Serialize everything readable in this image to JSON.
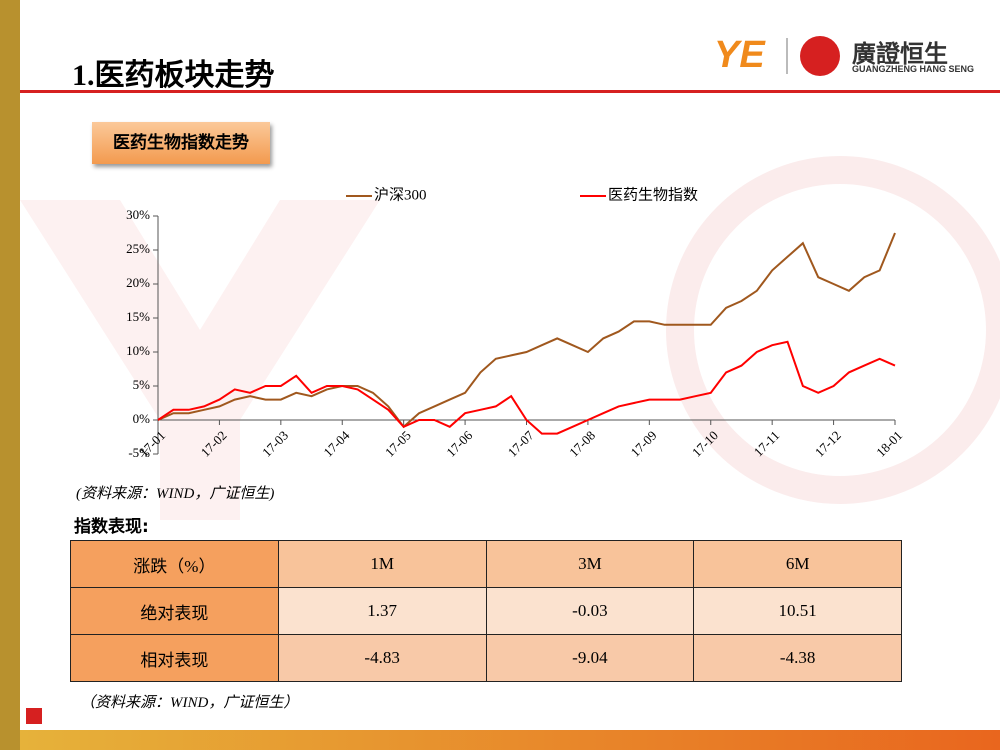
{
  "header": {
    "title": "1.医药板块走势",
    "logo_name": "廣證恒生",
    "logo_sub": "GUANGZHENG HANG SENG",
    "logo_mark": "YE"
  },
  "section_label": "医药生物指数走势",
  "chart_data": {
    "type": "line",
    "categories": [
      "17-01",
      null,
      null,
      null,
      "17-02",
      null,
      null,
      null,
      "17-03",
      null,
      null,
      null,
      "17-04",
      null,
      null,
      null,
      "17-05",
      null,
      null,
      null,
      "17-06",
      null,
      null,
      null,
      "17-07",
      null,
      null,
      null,
      "17-08",
      null,
      null,
      null,
      "17-09",
      null,
      null,
      null,
      "17-10",
      null,
      null,
      null,
      "17-11",
      null,
      null,
      null,
      "17-12",
      null,
      null,
      null,
      "18-01"
    ],
    "series": [
      {
        "name": "沪深300",
        "color": "#a0581e",
        "values": [
          0,
          1,
          1,
          1.5,
          2,
          3,
          3.5,
          3,
          3,
          4,
          3.5,
          4.5,
          5,
          5,
          4,
          2,
          -1,
          1,
          2,
          3,
          4,
          7,
          9,
          9.5,
          10,
          11,
          12,
          11,
          10,
          12,
          13,
          14.5,
          14.5,
          14,
          14,
          14,
          14,
          16.5,
          17.5,
          19,
          22,
          24,
          26,
          21,
          20,
          19,
          21,
          22,
          27.5
        ]
      },
      {
        "name": "医药生物指数",
        "color": "#ff0000",
        "values": [
          0,
          1.5,
          1.5,
          2,
          3,
          4.5,
          4,
          5,
          5,
          6.5,
          4,
          5,
          5,
          4.5,
          3,
          1.5,
          -1,
          0,
          0,
          -1,
          1,
          1.5,
          2,
          3.5,
          0,
          -2,
          -2,
          -1,
          0,
          1,
          2,
          2.5,
          3,
          3,
          3,
          3.5,
          4,
          7,
          8,
          10,
          11,
          11.5,
          5,
          4,
          5,
          7,
          8,
          9,
          8
        ]
      }
    ],
    "ylim": [
      -5,
      30
    ],
    "yticks": [
      {
        "value": -5,
        "label": "-5%"
      },
      {
        "value": 0,
        "label": "0%"
      },
      {
        "value": 5,
        "label": "5%"
      },
      {
        "value": 10,
        "label": "10%"
      },
      {
        "value": 15,
        "label": "15%"
      },
      {
        "value": 20,
        "label": "20%"
      },
      {
        "value": 25,
        "label": "25%"
      },
      {
        "value": 30,
        "label": "30%"
      }
    ],
    "legend": "top"
  },
  "chart_source": "(资料来源：WIND，广证恒生)",
  "table_title": "指数表现:",
  "table": {
    "header": [
      "涨跌（%）",
      "1M",
      "3M",
      "6M"
    ],
    "rows": [
      [
        "绝对表现",
        "1.37",
        "-0.03",
        "10.51"
      ],
      [
        "相对表现",
        "-4.83",
        "-9.04",
        "-4.38"
      ]
    ]
  },
  "table_source": "（资料来源：WIND，广证恒生）"
}
